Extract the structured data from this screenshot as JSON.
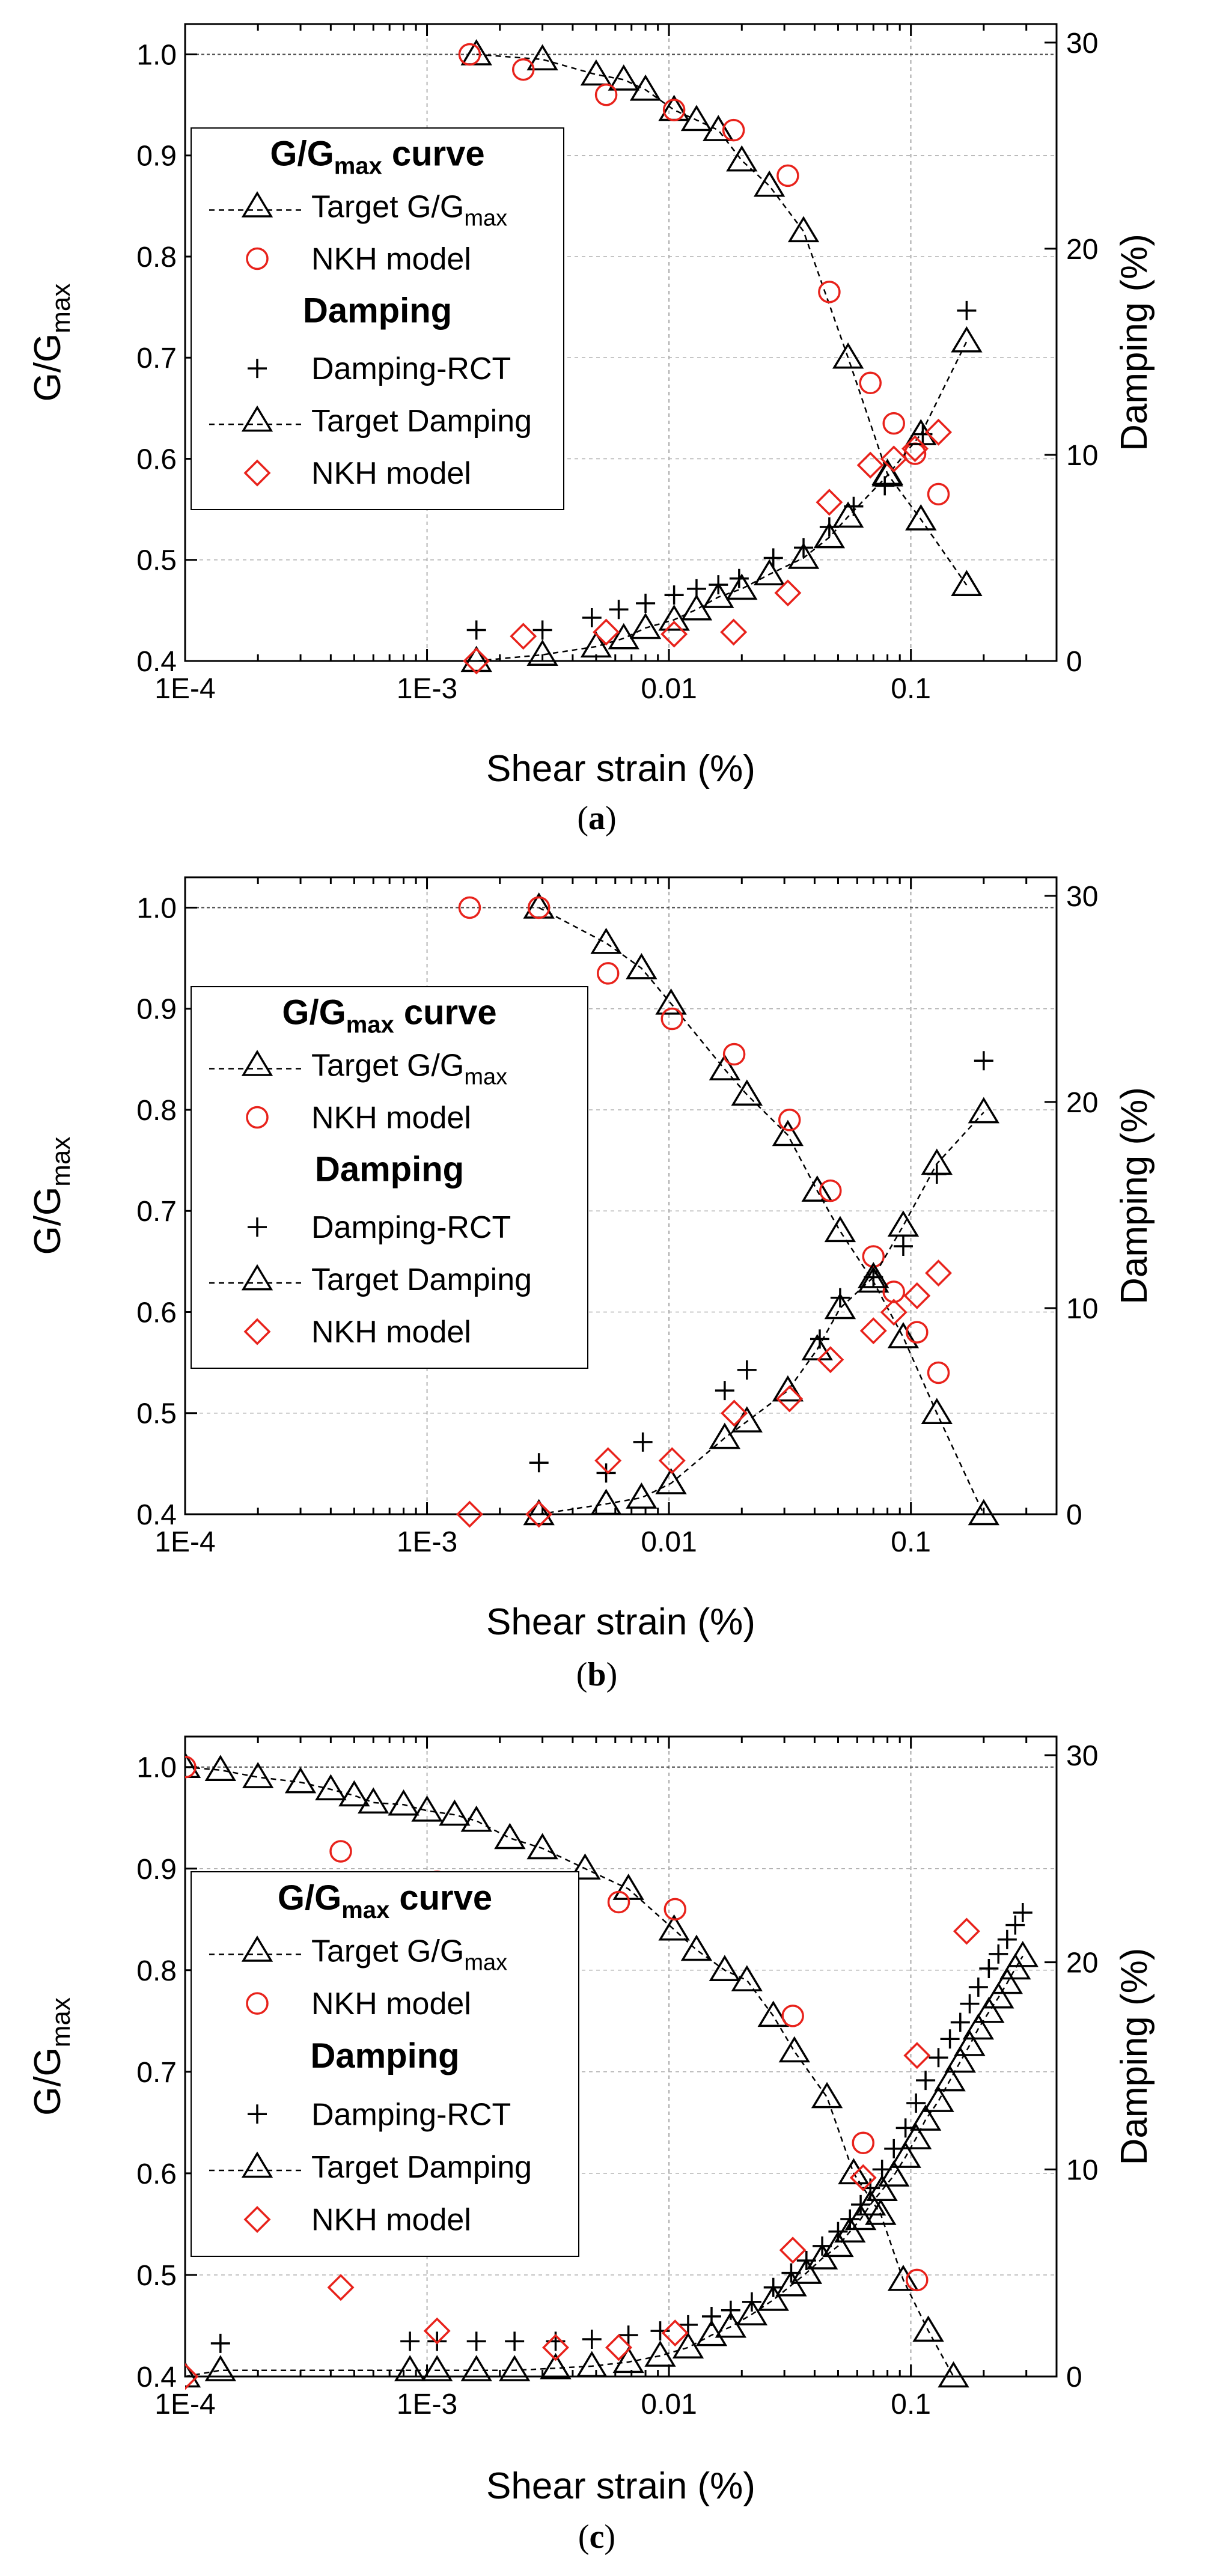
{
  "chart_data": [
    {
      "type": "line",
      "panel_label": "a",
      "xlabel": "Shear strain (%)",
      "ylabel_left": "G/G",
      "ylabel_left_sub": "max",
      "ylabel_right": "Damping (%)",
      "xscale": "log",
      "xlim": [
        0.0001,
        0.4
      ],
      "ylim_left": [
        0.4,
        1.03
      ],
      "ylim_right": [
        0,
        30.9
      ],
      "xticks": [
        0.0001,
        0.001,
        0.01,
        0.1
      ],
      "xtick_labels": [
        "1E-4",
        "1E-3",
        "0.01",
        "0.1"
      ],
      "yticks_left": [
        0.4,
        0.5,
        0.6,
        0.7,
        0.8,
        0.9,
        1.0
      ],
      "ytick_labels_left": [
        "0.4",
        "0.5",
        "0.6",
        "0.7",
        "0.8",
        "0.9",
        "1.0"
      ],
      "yticks_right": [
        0,
        10,
        20,
        30
      ],
      "ytick_labels_right": [
        "0",
        "10",
        "20",
        "30"
      ],
      "grid": true,
      "legend_position": "center-left",
      "legend": {
        "heading1": "G/G",
        "heading1_sub": "max",
        "heading1_tail": " curve",
        "item1": "Target G/G",
        "item1_sub": "max",
        "item2": "NKH model",
        "heading2": "Damping",
        "item3": "Damping-RCT",
        "item4": "Target Damping",
        "item5": "NKH model"
      },
      "series": [
        {
          "name": "Target G/G max",
          "axis": "left",
          "marker": "triangle",
          "line": "dashed",
          "color": "#000000",
          "x": [
            0.0016,
            0.003,
            0.005,
            0.0065,
            0.008,
            0.0105,
            0.013,
            0.016,
            0.02,
            0.026,
            0.036,
            0.055,
            0.08,
            0.11,
            0.17
          ],
          "y": [
            1.0,
            0.995,
            0.98,
            0.975,
            0.965,
            0.945,
            0.935,
            0.925,
            0.895,
            0.87,
            0.825,
            0.7,
            0.585,
            0.54,
            0.475
          ]
        },
        {
          "name": "NKH model",
          "axis": "left",
          "marker": "circle",
          "line": "none",
          "color": "#e8221b",
          "x": [
            0.0015,
            0.0025,
            0.0055,
            0.0105,
            0.0185,
            0.031,
            0.046,
            0.068,
            0.085,
            0.104,
            0.13
          ],
          "y": [
            1.0,
            0.985,
            0.96,
            0.945,
            0.925,
            0.88,
            0.765,
            0.675,
            0.635,
            0.605,
            0.565
          ]
        },
        {
          "name": "Damping-RCT",
          "axis": "right",
          "marker": "plus",
          "line": "none",
          "color": "#000000",
          "x": [
            0.0016,
            0.003,
            0.0048,
            0.0062,
            0.008,
            0.0105,
            0.013,
            0.016,
            0.0195,
            0.027,
            0.036,
            0.046,
            0.058,
            0.078,
            0.112,
            0.17
          ],
          "y": [
            1.5,
            1.5,
            2.1,
            2.5,
            2.8,
            3.2,
            3.5,
            3.7,
            4.0,
            5.0,
            5.5,
            6.5,
            7.5,
            8.5,
            11.0,
            17.0
          ]
        },
        {
          "name": "Target Damping",
          "axis": "right",
          "marker": "triangle",
          "line": "dashed",
          "color": "#000000",
          "x": [
            0.0016,
            0.003,
            0.005,
            0.0065,
            0.008,
            0.0105,
            0.013,
            0.016,
            0.02,
            0.026,
            0.036,
            0.046,
            0.055,
            0.08,
            0.11,
            0.17
          ],
          "y": [
            0.0,
            0.3,
            0.7,
            1.1,
            1.6,
            2.0,
            2.5,
            3.1,
            3.5,
            4.2,
            5.0,
            6.0,
            7.0,
            9.0,
            11.0,
            15.5
          ]
        },
        {
          "name": "NKH model",
          "axis": "right",
          "marker": "diamond",
          "line": "none",
          "color": "#e8221b",
          "x": [
            0.0016,
            0.0025,
            0.0055,
            0.0105,
            0.0185,
            0.031,
            0.046,
            0.068,
            0.085,
            0.104,
            0.13
          ],
          "y": [
            0.0,
            1.2,
            1.4,
            1.3,
            1.4,
            3.3,
            7.7,
            9.5,
            9.8,
            10.3,
            11.1
          ]
        }
      ]
    },
    {
      "type": "line",
      "panel_label": "b",
      "xlabel": "Shear strain (%)",
      "ylabel_left": "G/G",
      "ylabel_left_sub": "max",
      "ylabel_right": "Damping (%)",
      "xscale": "log",
      "xlim": [
        0.0001,
        0.4
      ],
      "ylim_left": [
        0.4,
        1.03
      ],
      "ylim_right": [
        0,
        30.9
      ],
      "xticks": [
        0.0001,
        0.001,
        0.01,
        0.1
      ],
      "xtick_labels": [
        "1E-4",
        "1E-3",
        "0.01",
        "0.1"
      ],
      "yticks_left": [
        0.4,
        0.5,
        0.6,
        0.7,
        0.8,
        0.9,
        1.0
      ],
      "ytick_labels_left": [
        "0.4",
        "0.5",
        "0.6",
        "0.7",
        "0.8",
        "0.9",
        "1.0"
      ],
      "yticks_right": [
        0,
        10,
        20,
        30
      ],
      "ytick_labels_right": [
        "0",
        "10",
        "20",
        "30"
      ],
      "grid": true,
      "legend_position": "center-left",
      "legend": {
        "heading1": "G/G",
        "heading1_sub": "max",
        "heading1_tail": " curve",
        "item1": "Target G/G",
        "item1_sub": "max",
        "item2": "NKH model",
        "heading2": "Damping",
        "item3": "Damping-RCT",
        "item4": "Target Damping",
        "item5": "NKH model"
      },
      "series": [
        {
          "name": "Target G/G max",
          "axis": "left",
          "marker": "triangle",
          "line": "dashed",
          "color": "#000000",
          "x": [
            0.0029,
            0.0055,
            0.0077,
            0.0102,
            0.017,
            0.021,
            0.031,
            0.041,
            0.051,
            0.07,
            0.093,
            0.128,
            0.2
          ],
          "y": [
            1.0,
            0.965,
            0.94,
            0.905,
            0.84,
            0.815,
            0.775,
            0.72,
            0.68,
            0.63,
            0.575,
            0.5,
            0.4
          ]
        },
        {
          "name": "NKH model",
          "axis": "left",
          "marker": "circle",
          "line": "none",
          "color": "#e8221b",
          "x": [
            0.0015,
            0.0029,
            0.0056,
            0.0103,
            0.0186,
            0.0315,
            0.0465,
            0.07,
            0.085,
            0.106,
            0.13
          ],
          "y": [
            1.0,
            1.0,
            0.935,
            0.89,
            0.855,
            0.79,
            0.72,
            0.655,
            0.62,
            0.58,
            0.54
          ]
        },
        {
          "name": "Damping-RCT",
          "axis": "right",
          "marker": "plus",
          "line": "none",
          "color": "#000000",
          "x": [
            0.0029,
            0.0055,
            0.0078,
            0.017,
            0.021,
            0.042,
            0.051,
            0.07,
            0.093,
            0.128,
            0.2
          ],
          "y": [
            2.5,
            2.0,
            3.5,
            6.0,
            7.0,
            8.5,
            10.5,
            11.5,
            13.0,
            16.5,
            22.0
          ]
        },
        {
          "name": "Target Damping",
          "axis": "right",
          "marker": "triangle",
          "line": "dashed",
          "color": "#000000",
          "x": [
            0.0029,
            0.0055,
            0.0077,
            0.0102,
            0.017,
            0.021,
            0.031,
            0.041,
            0.051,
            0.07,
            0.093,
            0.128,
            0.2
          ],
          "y": [
            0.0,
            0.5,
            0.8,
            1.5,
            3.7,
            4.5,
            6.0,
            8.0,
            10.0,
            11.5,
            14.0,
            17.0,
            19.5
          ]
        },
        {
          "name": "NKH model",
          "axis": "right",
          "marker": "diamond",
          "line": "none",
          "color": "#e8221b",
          "x": [
            0.0015,
            0.0029,
            0.0056,
            0.0103,
            0.0186,
            0.0315,
            0.0465,
            0.07,
            0.085,
            0.106,
            0.13
          ],
          "y": [
            0.0,
            0.0,
            2.6,
            2.6,
            4.9,
            5.6,
            7.5,
            8.9,
            9.8,
            10.6,
            11.7
          ]
        }
      ]
    },
    {
      "type": "line",
      "panel_label": "c",
      "xlabel": "Shear strain (%)",
      "ylabel_left": "G/G",
      "ylabel_left_sub": "max",
      "ylabel_right": "Damping (%)",
      "xscale": "log",
      "xlim": [
        0.0001,
        0.4
      ],
      "ylim_left": [
        0.4,
        1.03
      ],
      "ylim_right": [
        0,
        30.9
      ],
      "xticks": [
        0.0001,
        0.001,
        0.01,
        0.1
      ],
      "xtick_labels": [
        "1E-4",
        "1E-3",
        "0.01",
        "0.1"
      ],
      "yticks_left": [
        0.4,
        0.5,
        0.6,
        0.7,
        0.8,
        0.9,
        1.0
      ],
      "ytick_labels_left": [
        "0.4",
        "0.5",
        "0.6",
        "0.7",
        "0.8",
        "0.9",
        "1.0"
      ],
      "yticks_right": [
        0,
        10,
        20,
        30
      ],
      "ytick_labels_right": [
        "0",
        "10",
        "20",
        "30"
      ],
      "grid": true,
      "legend_position": "center-left",
      "legend": {
        "heading1": "G/G",
        "heading1_sub": "max",
        "heading1_tail": " curve",
        "item1": "Target G/G",
        "item1_sub": "max",
        "item2": "NKH model",
        "heading2": "Damping",
        "item3": "Damping-RCT",
        "item4": "Target Damping",
        "item5": "NKH model"
      },
      "series": [
        {
          "name": "Target G/G max",
          "axis": "left",
          "marker": "triangle",
          "line": "dashed",
          "color": "#000000",
          "x": [
            0.0001,
            0.00014,
            0.0002,
            0.0003,
            0.0004,
            0.0005,
            0.0006,
            0.0008,
            0.001,
            0.0013,
            0.0016,
            0.0022,
            0.003,
            0.0045,
            0.0068,
            0.0105,
            0.013,
            0.017,
            0.021,
            0.027,
            0.033,
            0.045,
            0.058,
            0.075,
            0.093,
            0.118,
            0.15
          ],
          "y": [
            1.0,
            0.997,
            0.99,
            0.985,
            0.978,
            0.972,
            0.965,
            0.963,
            0.957,
            0.953,
            0.947,
            0.93,
            0.92,
            0.9,
            0.88,
            0.84,
            0.82,
            0.8,
            0.79,
            0.755,
            0.72,
            0.675,
            0.6,
            0.56,
            0.495,
            0.445,
            0.4
          ]
        },
        {
          "name": "NKH model",
          "axis": "left",
          "marker": "circle",
          "line": "none",
          "color": "#e8221b",
          "x": [
            0.0001,
            0.00044,
            0.0011,
            0.0034,
            0.0062,
            0.0106,
            0.0325,
            0.0635,
            0.106
          ],
          "y": [
            1.0,
            0.917,
            0.887,
            0.873,
            0.867,
            0.86,
            0.755,
            0.63,
            0.495
          ]
        },
        {
          "name": "Damping-RCT",
          "axis": "right",
          "marker": "plus",
          "line": "none",
          "color": "#000000",
          "x": [
            0.00014,
            0.00085,
            0.0011,
            0.0016,
            0.0023,
            0.0034,
            0.0048,
            0.0068,
            0.0092,
            0.012,
            0.015,
            0.018,
            0.022,
            0.027,
            0.032,
            0.037,
            0.043,
            0.05,
            0.056,
            0.062,
            0.068,
            0.076,
            0.085,
            0.095,
            0.105,
            0.115,
            0.13,
            0.145,
            0.16,
            0.175,
            0.19,
            0.21,
            0.23,
            0.25,
            0.27,
            0.29
          ],
          "y": [
            1.6,
            1.7,
            1.7,
            1.7,
            1.7,
            1.7,
            1.8,
            2.0,
            2.2,
            2.5,
            2.9,
            3.2,
            3.6,
            4.3,
            5.0,
            5.6,
            6.3,
            7.0,
            7.6,
            8.3,
            9.1,
            10.0,
            11.0,
            12.0,
            13.2,
            14.3,
            15.4,
            16.3,
            17.1,
            18.0,
            18.8,
            19.7,
            20.4,
            21.1,
            21.8,
            22.4
          ]
        },
        {
          "name": "Target Damping",
          "axis": "right",
          "marker": "triangle",
          "line": "dashed",
          "color": "#000000",
          "x": [
            0.0001,
            0.00014,
            0.00085,
            0.0011,
            0.0016,
            0.0023,
            0.0034,
            0.0048,
            0.0068,
            0.0092,
            0.012,
            0.015,
            0.018,
            0.022,
            0.027,
            0.032,
            0.037,
            0.043,
            0.05,
            0.056,
            0.062,
            0.068,
            0.076,
            0.085,
            0.095,
            0.105,
            0.115,
            0.13,
            0.145,
            0.16,
            0.175,
            0.19,
            0.21,
            0.23,
            0.25,
            0.27,
            0.29
          ],
          "y": [
            0.0,
            0.3,
            0.3,
            0.3,
            0.3,
            0.3,
            0.4,
            0.5,
            0.7,
            1.0,
            1.4,
            2.0,
            2.4,
            3.0,
            3.7,
            4.4,
            5.0,
            5.7,
            6.3,
            7.0,
            7.6,
            8.3,
            9.0,
            9.7,
            10.6,
            11.5,
            12.4,
            13.3,
            14.3,
            15.2,
            16.0,
            16.8,
            17.6,
            18.3,
            19.0,
            19.7,
            20.3
          ]
        },
        {
          "name": "NKH model",
          "axis": "right",
          "marker": "diamond",
          "line": "none",
          "color": "#e8221b",
          "x": [
            0.0001,
            0.00044,
            0.0011,
            0.0034,
            0.0062,
            0.0106,
            0.0325,
            0.0635,
            0.106,
            0.17
          ],
          "y": [
            0.0,
            4.3,
            2.2,
            1.4,
            1.4,
            2.1,
            6.1,
            9.6,
            15.5,
            21.5
          ]
        }
      ]
    }
  ]
}
